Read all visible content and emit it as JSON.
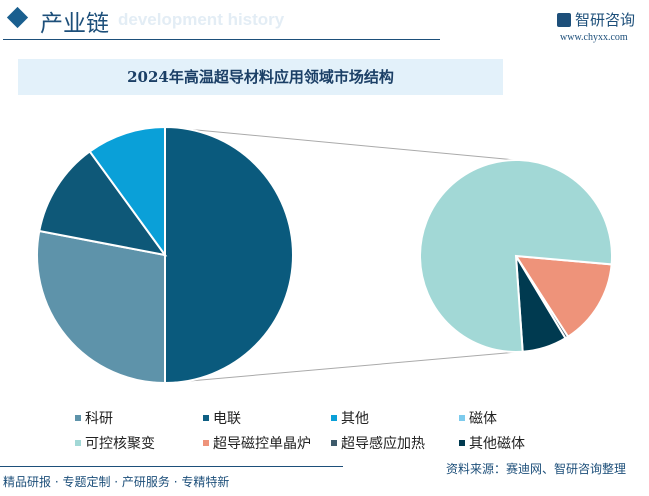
{
  "header": {
    "title": "产业链",
    "subtitle": "development history",
    "logo": "智研咨询",
    "site": "www.chyxx.com"
  },
  "footer": {
    "left": "精品研报 · 专题定制 · 产研服务 · 专精特新",
    "source": "资料来源：赛迪网、智研咨询整理"
  },
  "chart_data": {
    "type": "pie",
    "title": "2024年高温超导材料应用领域市场结构",
    "pies": [
      {
        "name": "main",
        "slices": [
          {
            "label": "磁体",
            "value": 50,
            "color": "#0a5a7d"
          },
          {
            "label": "科研",
            "value": 28,
            "color": "#5e93aa"
          },
          {
            "label": "电联",
            "value": 12,
            "color": "#0e5878"
          },
          {
            "label": "其他",
            "value": 10,
            "color": "#0aa0d8"
          }
        ]
      },
      {
        "name": "磁体 breakdown",
        "slices": [
          {
            "label": "超导磁控单晶炉",
            "value": 14.5,
            "color": "#ee937a"
          },
          {
            "label": "超导感应加热",
            "value": 0.5,
            "color": "#3d5a6b"
          },
          {
            "label": "其他磁体",
            "value": 7.5,
            "color": "#003a50"
          },
          {
            "label": "可控核聚变",
            "value": 77.5,
            "color": "#a2d8d6"
          }
        ]
      }
    ],
    "legend": [
      {
        "label": "科研",
        "color": "#5e93aa"
      },
      {
        "label": "电联",
        "color": "#0e5f83"
      },
      {
        "label": "其他",
        "color": "#0aa0d8"
      },
      {
        "label": "磁体",
        "color": "#7dcbed"
      },
      {
        "label": "可控核聚变",
        "color": "#a2d8d6"
      },
      {
        "label": "超导磁控单晶炉",
        "color": "#ee937a"
      },
      {
        "label": "超导感应加热",
        "color": "#3d5a6b"
      },
      {
        "label": "其他磁体",
        "color": "#003a50"
      }
    ],
    "legend_position": "bottom"
  }
}
